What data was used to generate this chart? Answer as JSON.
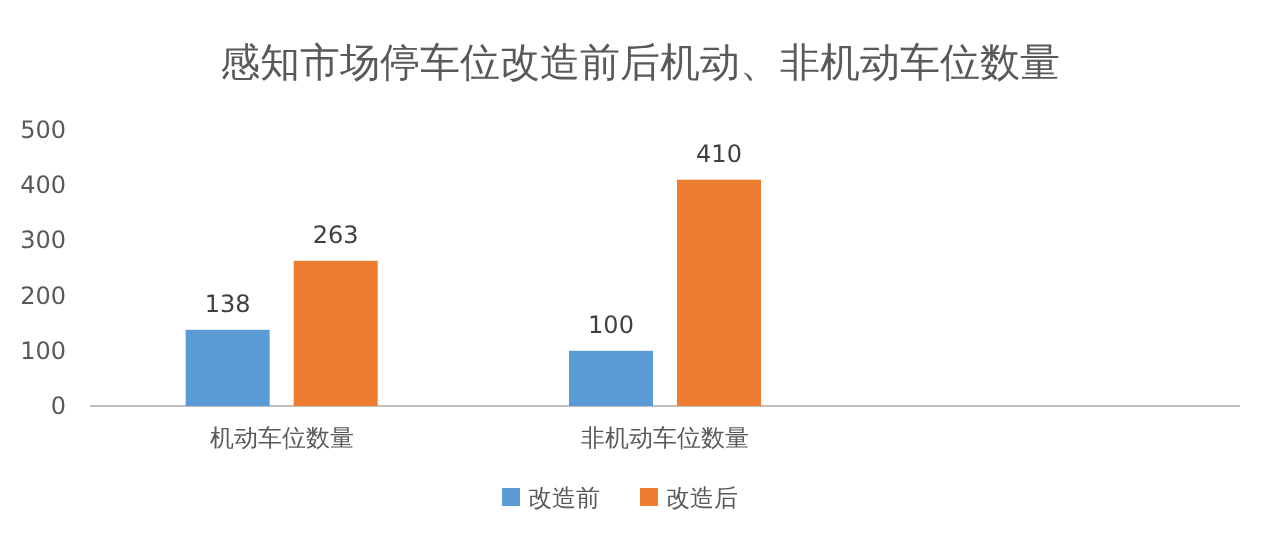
{
  "chart_data": {
    "type": "bar",
    "title": "感知市场停车位改造前后机动、非机动车位数量",
    "categories": [
      "机动车位数量",
      "非机动车位数量",
      null
    ],
    "series": [
      {
        "name": "改造前",
        "color": "#5b9bd5",
        "values": [
          138,
          100,
          null
        ]
      },
      {
        "name": "改造后",
        "color": "#ed7d31",
        "values": [
          263,
          410,
          null
        ]
      }
    ],
    "ylim": [
      0,
      500
    ],
    "yticks": [
      0,
      100,
      200,
      300,
      400,
      500
    ],
    "data_labels": true,
    "legend": "bottom"
  }
}
